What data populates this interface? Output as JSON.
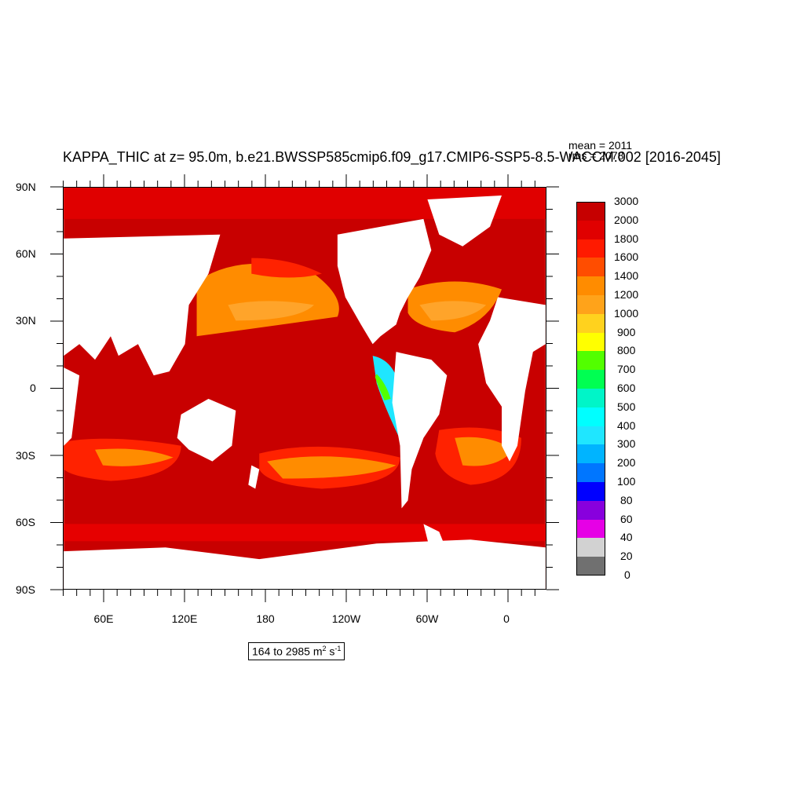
{
  "title": "KAPPA_THIC at z=  95.0m, b.e21.BWSSP585cmip6.f09_g17.CMIP6-SSP5-8.5-WACCM.002 [2016-2045]",
  "stats": {
    "mean": "mean = 2011",
    "rms": "rms = 2078"
  },
  "range": {
    "text": "164 to 2985 m",
    "exp1": "2",
    "unit2": " s",
    "exp2": "-1"
  },
  "y_ticks": [
    "90N",
    "60N",
    "30N",
    "0",
    "30S",
    "60S",
    "90S"
  ],
  "x_ticks": [
    "60E",
    "120E",
    "180",
    "120W",
    "60W",
    "0"
  ],
  "colorbar": {
    "labels": [
      "3000",
      "2000",
      "1800",
      "1600",
      "1400",
      "1200",
      "1000",
      "900",
      "800",
      "700",
      "600",
      "500",
      "400",
      "300",
      "200",
      "100",
      "80",
      "60",
      "40",
      "20",
      "0"
    ],
    "colors": [
      "#c60000",
      "#e00000",
      "#ff1a00",
      "#ff4d00",
      "#ff8c00",
      "#ffa31a",
      "#ffd21e",
      "#ffff00",
      "#52ff00",
      "#00ff52",
      "#00f5c8",
      "#00ffff",
      "#1fe6ff",
      "#00b4ff",
      "#0076ff",
      "#0000ff",
      "#8800dd",
      "#e600e6",
      "#d2d2d2",
      "#707070"
    ]
  },
  "map_colors": {
    "ocean_main": "#c80000",
    "ocean_high": "#ff2200",
    "ocean_mid": "#ff8c00",
    "ocean_low": "#ffa42a",
    "coastal_cyan": "#1fe6ff",
    "coastal_green": "#52ff00",
    "land": "#ffffff"
  }
}
